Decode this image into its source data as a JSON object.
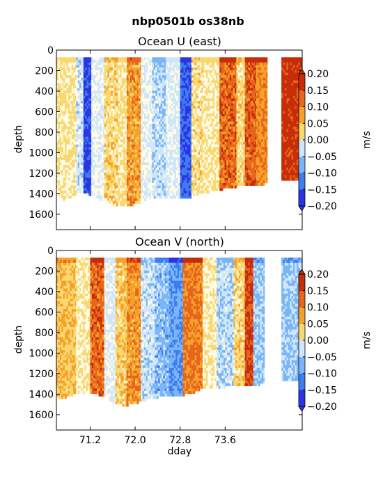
{
  "suptitle": "nbp0501b os38nb",
  "chart_data": [
    {
      "type": "heatmap",
      "title": "Ocean U (east)",
      "xlabel": "",
      "ylabel": "depth",
      "xlim": [
        70.6,
        74.97
      ],
      "ylim": [
        1750,
        0
      ],
      "yticks": [
        0,
        200,
        400,
        600,
        800,
        1000,
        1200,
        1400,
        1600
      ],
      "xticks": [
        71.2,
        72.0,
        72.8,
        73.6
      ],
      "top_depth": 70,
      "colorbar": {
        "label": "m/s",
        "levels": [
          -0.2,
          -0.15,
          -0.1,
          -0.05,
          0.0,
          0.05,
          0.1,
          0.15,
          0.2
        ],
        "ticklabels": [
          "0.20",
          "0.15",
          "0.10",
          "0.05",
          "0.00",
          "−0.05",
          "−0.10",
          "−0.15",
          "−0.20"
        ]
      },
      "bottom_depth_profile": {
        "x": [
          70.6,
          70.7,
          70.85,
          71.0,
          71.2,
          71.4,
          71.6,
          71.8,
          72.0,
          72.2,
          72.4,
          72.6,
          72.8,
          73.0,
          73.2,
          73.4,
          73.6,
          73.8,
          74.0,
          74.2,
          74.35
        ],
        "depth": [
          1400,
          1450,
          1420,
          1380,
          1400,
          1460,
          1500,
          1520,
          1490,
          1440,
          1430,
          1420,
          1440,
          1420,
          1380,
          1360,
          1340,
          1320,
          1300,
          1320,
          1280
        ]
      },
      "bands": [
        {
          "x0": 70.6,
          "x1": 70.95,
          "u": 0.03
        },
        {
          "x0": 70.95,
          "x1": 71.08,
          "u": -0.04
        },
        {
          "x0": 71.08,
          "x1": 71.22,
          "u": -0.19
        },
        {
          "x0": 71.22,
          "x1": 71.45,
          "u": -0.02
        },
        {
          "x0": 71.45,
          "x1": 71.7,
          "u": 0.05
        },
        {
          "x0": 71.7,
          "x1": 71.85,
          "u": 0.03
        },
        {
          "x0": 71.85,
          "x1": 72.1,
          "u": 0.1
        },
        {
          "x0": 72.1,
          "x1": 72.3,
          "u": -0.02
        },
        {
          "x0": 72.3,
          "x1": 72.55,
          "u": -0.06
        },
        {
          "x0": 72.55,
          "x1": 72.8,
          "u": -0.03
        },
        {
          "x0": 72.8,
          "x1": 73.0,
          "u": -0.17
        },
        {
          "x0": 73.0,
          "x1": 73.2,
          "u": 0.04
        },
        {
          "x0": 73.2,
          "x1": 73.5,
          "u": 0.03
        },
        {
          "x0": 73.5,
          "x1": 73.8,
          "u": 0.15
        },
        {
          "x0": 73.8,
          "x1": 73.95,
          "u": 0.05
        },
        {
          "x0": 73.95,
          "x1": 74.15,
          "u": 0.16
        },
        {
          "x0": 74.15,
          "x1": 74.35,
          "u": 0.12
        },
        {
          "x0": 74.35,
          "x1": 74.6,
          "u": null
        },
        {
          "x0": 74.6,
          "x1": 74.97,
          "u": 0.2
        }
      ]
    },
    {
      "type": "heatmap",
      "title": "Ocean V (north)",
      "xlabel": "dday",
      "ylabel": "depth",
      "xlim": [
        70.6,
        74.97
      ],
      "ylim": [
        1750,
        0
      ],
      "yticks": [
        0,
        200,
        400,
        600,
        800,
        1000,
        1200,
        1400,
        1600
      ],
      "xticks": [
        71.2,
        72.0,
        72.8,
        73.6
      ],
      "xticklabels": [
        "71.2",
        "72.0",
        "72.8",
        "73.6"
      ],
      "top_depth": 70,
      "colorbar": {
        "label": "m/s",
        "levels": [
          -0.2,
          -0.15,
          -0.1,
          -0.05,
          0.0,
          0.05,
          0.1,
          0.15,
          0.2
        ],
        "ticklabels": [
          "0.20",
          "0.15",
          "0.10",
          "0.05",
          "0.00",
          "−0.05",
          "−0.10",
          "−0.15",
          "−0.20"
        ]
      },
      "bottom_depth_profile": {
        "x": [
          70.6,
          70.7,
          70.85,
          71.0,
          71.2,
          71.4,
          71.6,
          71.8,
          72.0,
          72.2,
          72.4,
          72.6,
          72.8,
          73.0,
          73.2,
          73.4,
          73.6,
          73.8,
          74.0,
          74.2,
          74.35
        ],
        "depth": [
          1420,
          1440,
          1400,
          1380,
          1380,
          1400,
          1470,
          1500,
          1480,
          1440,
          1420,
          1420,
          1400,
          1380,
          1330,
          1330,
          1320,
          1300,
          1300,
          1300,
          1260
        ]
      },
      "bands": [
        {
          "x0": 70.6,
          "x1": 70.95,
          "v": 0.07
        },
        {
          "x0": 70.95,
          "x1": 71.2,
          "v": 0.02
        },
        {
          "x0": 71.2,
          "x1": 71.45,
          "v": 0.15
        },
        {
          "x0": 71.45,
          "x1": 71.65,
          "v": -0.03
        },
        {
          "x0": 71.65,
          "x1": 71.85,
          "v": 0.06
        },
        {
          "x0": 71.85,
          "x1": 72.1,
          "v": 0.11
        },
        {
          "x0": 72.1,
          "x1": 72.35,
          "v": -0.05
        },
        {
          "x0": 72.35,
          "x1": 72.6,
          "v": -0.09
        },
        {
          "x0": 72.6,
          "x1": 72.85,
          "v": -0.12
        },
        {
          "x0": 72.85,
          "x1": 73.2,
          "v": 0.13
        },
        {
          "x0": 73.2,
          "x1": 73.45,
          "v": 0.02
        },
        {
          "x0": 73.45,
          "x1": 73.75,
          "v": -0.06
        },
        {
          "x0": 73.75,
          "x1": 73.95,
          "v": 0.05
        },
        {
          "x0": 73.95,
          "x1": 74.1,
          "v": 0.18
        },
        {
          "x0": 74.1,
          "x1": 74.3,
          "v": -0.08
        },
        {
          "x0": 74.3,
          "x1": 74.6,
          "v": null
        },
        {
          "x0": 74.6,
          "x1": 74.97,
          "v": -0.08
        }
      ]
    }
  ],
  "colors": {
    "palette": [
      "#2b35e6",
      "#3f7cef",
      "#7ab6f7",
      "#cfe6fb",
      "#fffbe6",
      "#f9d870",
      "#f5a12a",
      "#e8651c",
      "#c62d09"
    ]
  }
}
